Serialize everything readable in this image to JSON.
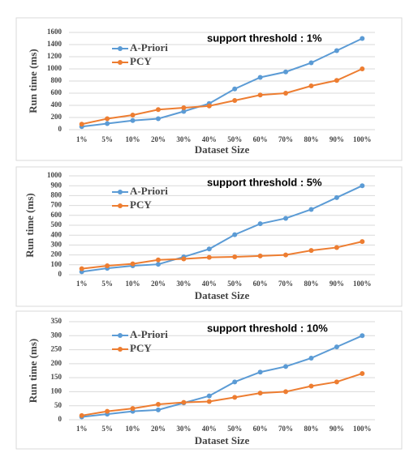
{
  "chart_data": [
    {
      "type": "line",
      "annotation": "support threshold : 1%",
      "xlabel": "Dataset Size",
      "ylabel": "Run time (ms)",
      "categories": [
        "1%",
        "5%",
        "10%",
        "20%",
        "30%",
        "40%",
        "50%",
        "60%",
        "70%",
        "80%",
        "90%",
        "100%"
      ],
      "series": [
        {
          "name": "A-Priori",
          "color": "#5b9bd5",
          "values": [
            50,
            100,
            150,
            180,
            300,
            430,
            670,
            860,
            950,
            1100,
            1300,
            1500
          ]
        },
        {
          "name": "PCY",
          "color": "#ed7d31",
          "values": [
            90,
            180,
            240,
            330,
            360,
            390,
            480,
            570,
            600,
            720,
            810,
            1000
          ]
        }
      ],
      "ylim": [
        0,
        1600
      ],
      "yticks": [
        0,
        200,
        400,
        600,
        800,
        1000,
        1200,
        1400,
        1600
      ],
      "grid": true,
      "legend": "upper left"
    },
    {
      "type": "line",
      "annotation": "support threshold : 5%",
      "xlabel": "Dataset Size",
      "ylabel": "Run time (ms)",
      "categories": [
        "1%",
        "5%",
        "10%",
        "20%",
        "30%",
        "40%",
        "50%",
        "60%",
        "70%",
        "80%",
        "90%",
        "100%"
      ],
      "series": [
        {
          "name": "A-Priori",
          "color": "#5b9bd5",
          "values": [
            30,
            65,
            90,
            105,
            180,
            260,
            405,
            515,
            570,
            660,
            780,
            900
          ]
        },
        {
          "name": "PCY",
          "color": "#ed7d31",
          "values": [
            60,
            90,
            110,
            150,
            160,
            175,
            180,
            190,
            200,
            245,
            275,
            335
          ]
        }
      ],
      "ylim": [
        0,
        1000
      ],
      "yticks": [
        0,
        100,
        200,
        300,
        400,
        500,
        600,
        700,
        800,
        900,
        1000
      ],
      "grid": true,
      "legend": "upper left"
    },
    {
      "type": "line",
      "annotation": "support threshold : 10%",
      "xlabel": "Dataset Size",
      "ylabel": "Run time (ms)",
      "categories": [
        "1%",
        "5%",
        "10%",
        "20%",
        "30%",
        "40%",
        "50%",
        "60%",
        "70%",
        "80%",
        "90%",
        "100%"
      ],
      "series": [
        {
          "name": "A-Priori",
          "color": "#5b9bd5",
          "values": [
            10,
            20,
            30,
            35,
            60,
            85,
            135,
            170,
            190,
            220,
            260,
            300
          ]
        },
        {
          "name": "PCY",
          "color": "#ed7d31",
          "values": [
            15,
            30,
            40,
            55,
            62,
            65,
            80,
            95,
            100,
            120,
            135,
            165
          ]
        }
      ],
      "ylim": [
        0,
        350
      ],
      "yticks": [
        0,
        50,
        100,
        150,
        200,
        250,
        300,
        350
      ],
      "grid": true,
      "legend": "upper left"
    }
  ]
}
